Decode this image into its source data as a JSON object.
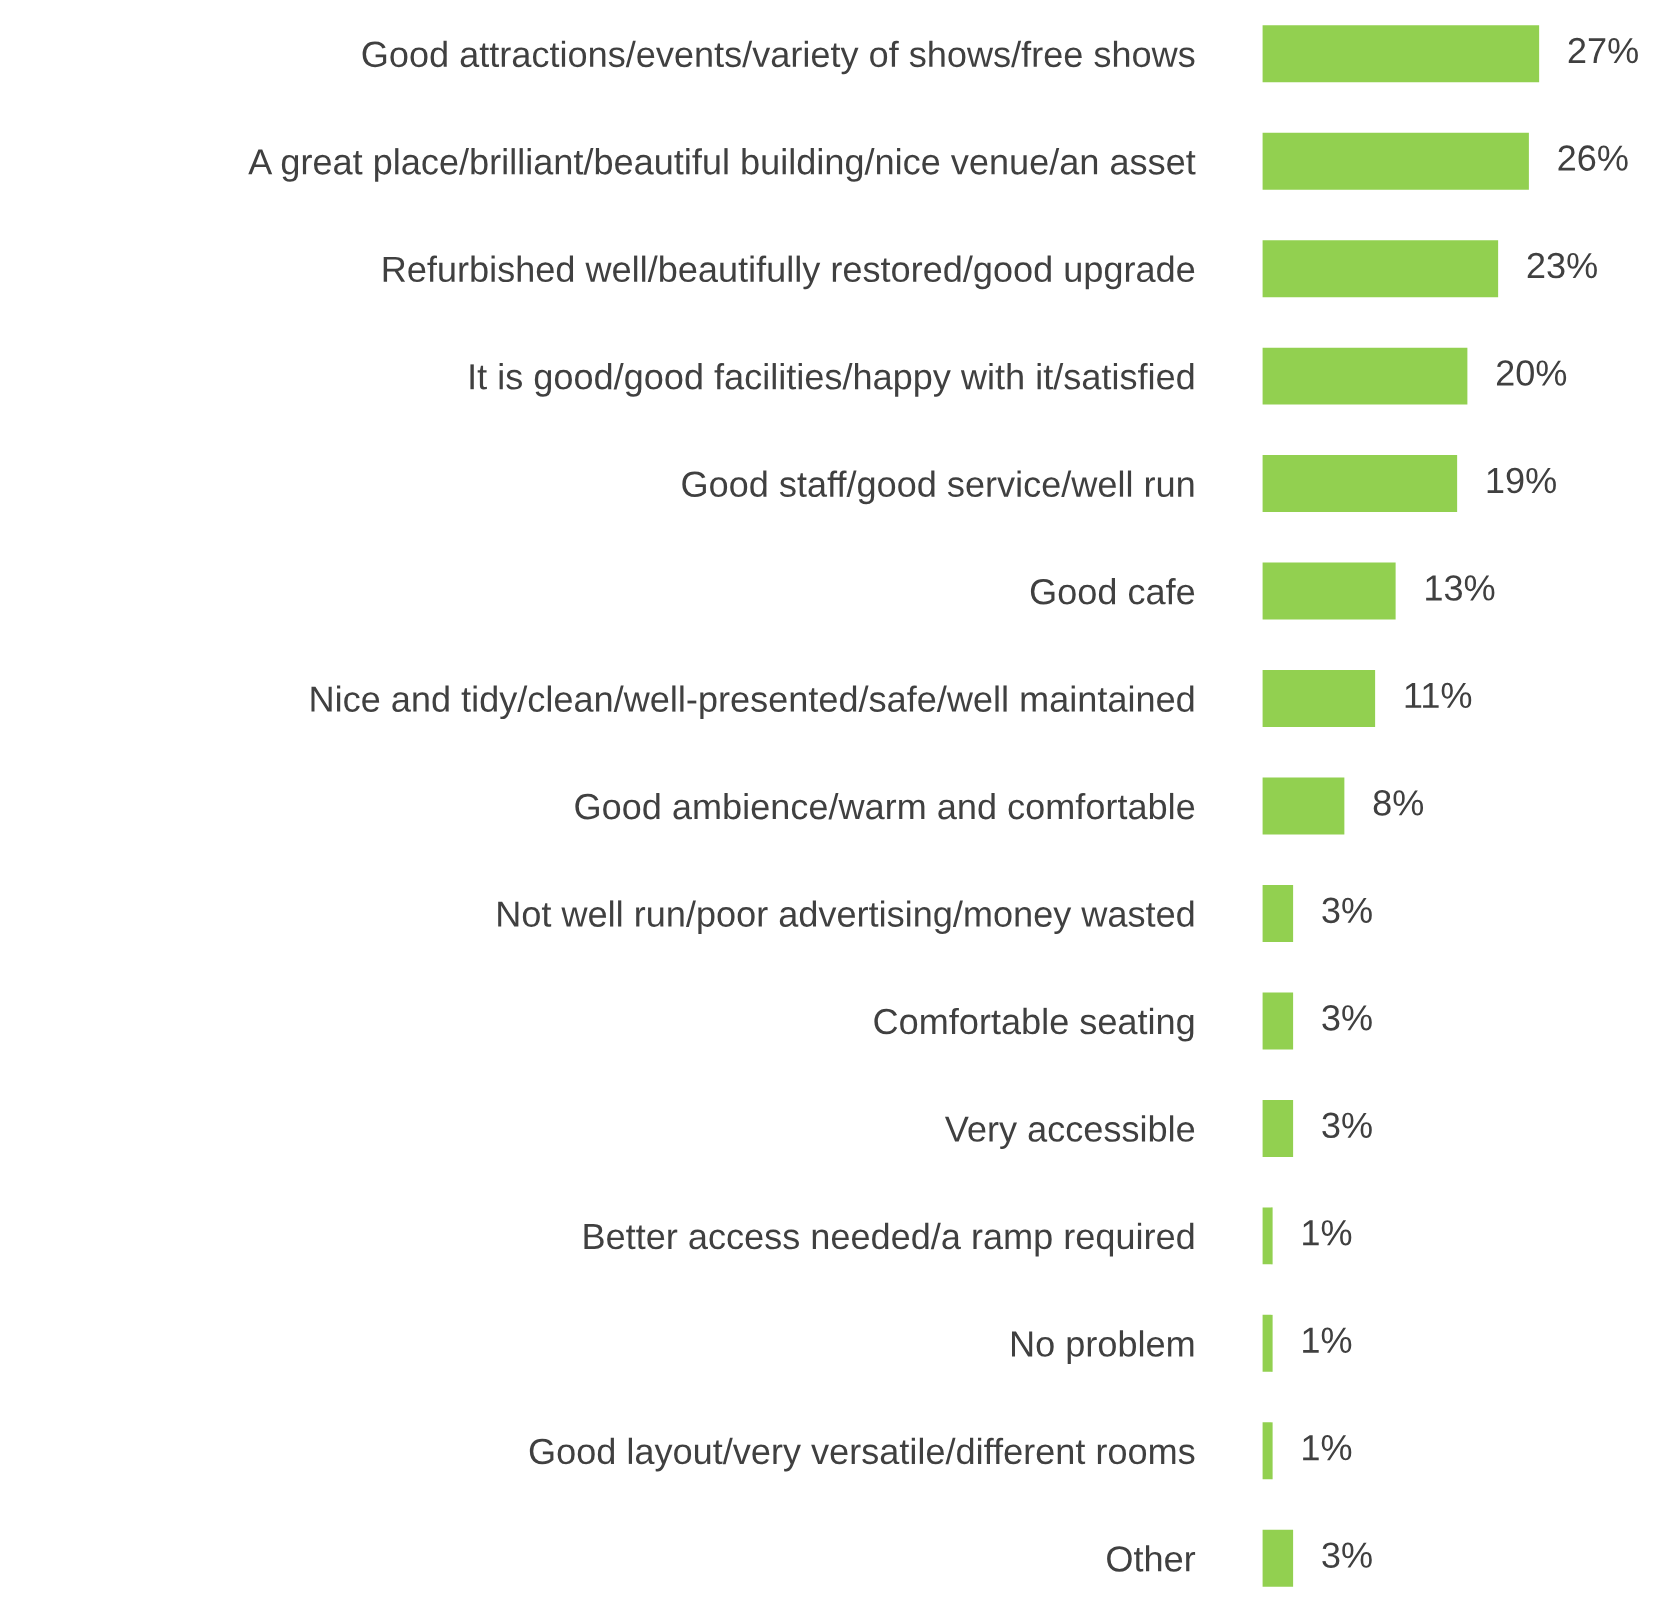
{
  "chart_data": {
    "type": "bar",
    "orientation": "horizontal",
    "categories": [
      "Good attractions/events/variety of shows/free shows",
      "A great place/brilliant/beautiful building/nice venue/an asset",
      "Refurbished well/beautifully restored/good upgrade",
      "It is good/good facilities/happy with it/satisfied",
      "Good staff/good service/well run",
      "Good cafe",
      "Nice and tidy/clean/well-presented/safe/well maintained",
      "Good ambience/warm and comfortable",
      "Not well run/poor advertising/money wasted",
      "Comfortable seating",
      "Very accessible",
      "Better access needed/a ramp required",
      "No problem",
      "Good layout/very versatile/different rooms",
      "Other"
    ],
    "values": [
      27,
      26,
      23,
      20,
      19,
      13,
      11,
      8,
      3,
      3,
      3,
      1,
      1,
      1,
      3
    ],
    "value_labels": [
      "27%",
      "26%",
      "23%",
      "20%",
      "19%",
      "13%",
      "11%",
      "8%",
      "3%",
      "3%",
      "3%",
      "1%",
      "1%",
      "1%",
      "3%"
    ],
    "color": "#92d050",
    "grid": false,
    "legend": false
  }
}
